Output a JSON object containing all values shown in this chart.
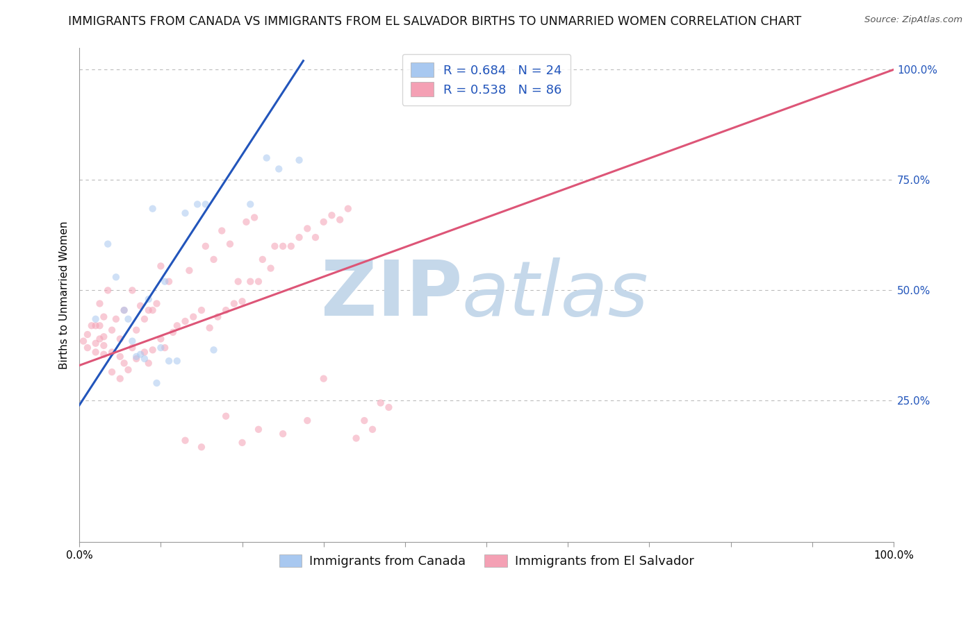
{
  "title": "IMMIGRANTS FROM CANADA VS IMMIGRANTS FROM EL SALVADOR BIRTHS TO UNMARRIED WOMEN CORRELATION CHART",
  "source": "Source: ZipAtlas.com",
  "ylabel": "Births to Unmarried Women",
  "legend_canada": "Immigrants from Canada",
  "legend_salvador": "Immigrants from El Salvador",
  "canada_R": 0.684,
  "canada_N": 24,
  "salvador_R": 0.538,
  "salvador_N": 86,
  "canada_color": "#a8c8f0",
  "salvador_color": "#f4a0b4",
  "canada_line_color": "#2255bb",
  "salvador_line_color": "#dd5577",
  "watermark_zip": "ZIP",
  "watermark_atlas": "atlas",
  "watermark_color": "#c5d8ea",
  "xlim": [
    0.0,
    1.0
  ],
  "ylim": [
    -0.07,
    1.05
  ],
  "x_ticks": [
    0.0,
    0.1,
    0.2,
    0.3,
    0.4,
    0.5,
    0.6,
    0.7,
    0.8,
    0.9,
    1.0
  ],
  "x_tick_labels_show": {
    "0.0": "0.0%",
    "1.0": "100.0%"
  },
  "y_ticks_right": [
    0.25,
    0.5,
    0.75,
    1.0
  ],
  "y_tick_labels_right": [
    "25.0%",
    "50.0%",
    "75.0%",
    "100.0%"
  ],
  "canada_scatter_x": [
    0.02,
    0.035,
    0.045,
    0.055,
    0.06,
    0.065,
    0.07,
    0.075,
    0.08,
    0.085,
    0.09,
    0.095,
    0.1,
    0.105,
    0.11,
    0.12,
    0.13,
    0.145,
    0.155,
    0.165,
    0.21,
    0.23,
    0.245,
    0.27
  ],
  "canada_scatter_y": [
    0.435,
    0.605,
    0.53,
    0.455,
    0.435,
    0.385,
    0.35,
    0.355,
    0.345,
    0.48,
    0.685,
    0.29,
    0.37,
    0.52,
    0.34,
    0.34,
    0.675,
    0.695,
    0.695,
    0.365,
    0.695,
    0.8,
    0.775,
    0.795
  ],
  "salvador_scatter_x": [
    0.005,
    0.01,
    0.01,
    0.015,
    0.02,
    0.02,
    0.02,
    0.025,
    0.025,
    0.025,
    0.03,
    0.03,
    0.03,
    0.03,
    0.035,
    0.04,
    0.04,
    0.04,
    0.045,
    0.05,
    0.05,
    0.05,
    0.055,
    0.055,
    0.06,
    0.065,
    0.065,
    0.07,
    0.07,
    0.075,
    0.08,
    0.08,
    0.085,
    0.085,
    0.09,
    0.09,
    0.095,
    0.1,
    0.1,
    0.105,
    0.11,
    0.115,
    0.12,
    0.13,
    0.135,
    0.14,
    0.15,
    0.155,
    0.16,
    0.165,
    0.17,
    0.175,
    0.18,
    0.185,
    0.19,
    0.195,
    0.2,
    0.205,
    0.21,
    0.215,
    0.22,
    0.225,
    0.235,
    0.24,
    0.25,
    0.26,
    0.27,
    0.28,
    0.29,
    0.3,
    0.31,
    0.32,
    0.33,
    0.34,
    0.35,
    0.36,
    0.37,
    0.38,
    0.3,
    0.28,
    0.25,
    0.22,
    0.2,
    0.18,
    0.15,
    0.13
  ],
  "salvador_scatter_y": [
    0.385,
    0.37,
    0.4,
    0.42,
    0.36,
    0.38,
    0.42,
    0.39,
    0.42,
    0.47,
    0.355,
    0.375,
    0.395,
    0.44,
    0.5,
    0.315,
    0.36,
    0.41,
    0.435,
    0.3,
    0.35,
    0.39,
    0.335,
    0.455,
    0.32,
    0.37,
    0.5,
    0.345,
    0.41,
    0.465,
    0.36,
    0.435,
    0.335,
    0.455,
    0.365,
    0.455,
    0.47,
    0.39,
    0.555,
    0.37,
    0.52,
    0.405,
    0.42,
    0.43,
    0.545,
    0.44,
    0.455,
    0.6,
    0.415,
    0.57,
    0.44,
    0.635,
    0.455,
    0.605,
    0.47,
    0.52,
    0.475,
    0.655,
    0.52,
    0.665,
    0.52,
    0.57,
    0.55,
    0.6,
    0.6,
    0.6,
    0.62,
    0.64,
    0.62,
    0.655,
    0.67,
    0.66,
    0.685,
    0.165,
    0.205,
    0.185,
    0.245,
    0.235,
    0.3,
    0.205,
    0.175,
    0.185,
    0.155,
    0.215,
    0.145,
    0.16
  ],
  "canada_line_x": [
    0.0,
    0.275
  ],
  "canada_line_y": [
    0.24,
    1.02
  ],
  "salvador_line_x": [
    0.0,
    1.0
  ],
  "salvador_line_y": [
    0.33,
    1.0
  ],
  "background_color": "#ffffff",
  "grid_color": "#bbbbbb",
  "title_fontsize": 12.5,
  "axis_fontsize": 11,
  "legend_fontsize": 13,
  "scatter_size": 55,
  "scatter_alpha": 0.55,
  "marker_linewidth": 0.0
}
